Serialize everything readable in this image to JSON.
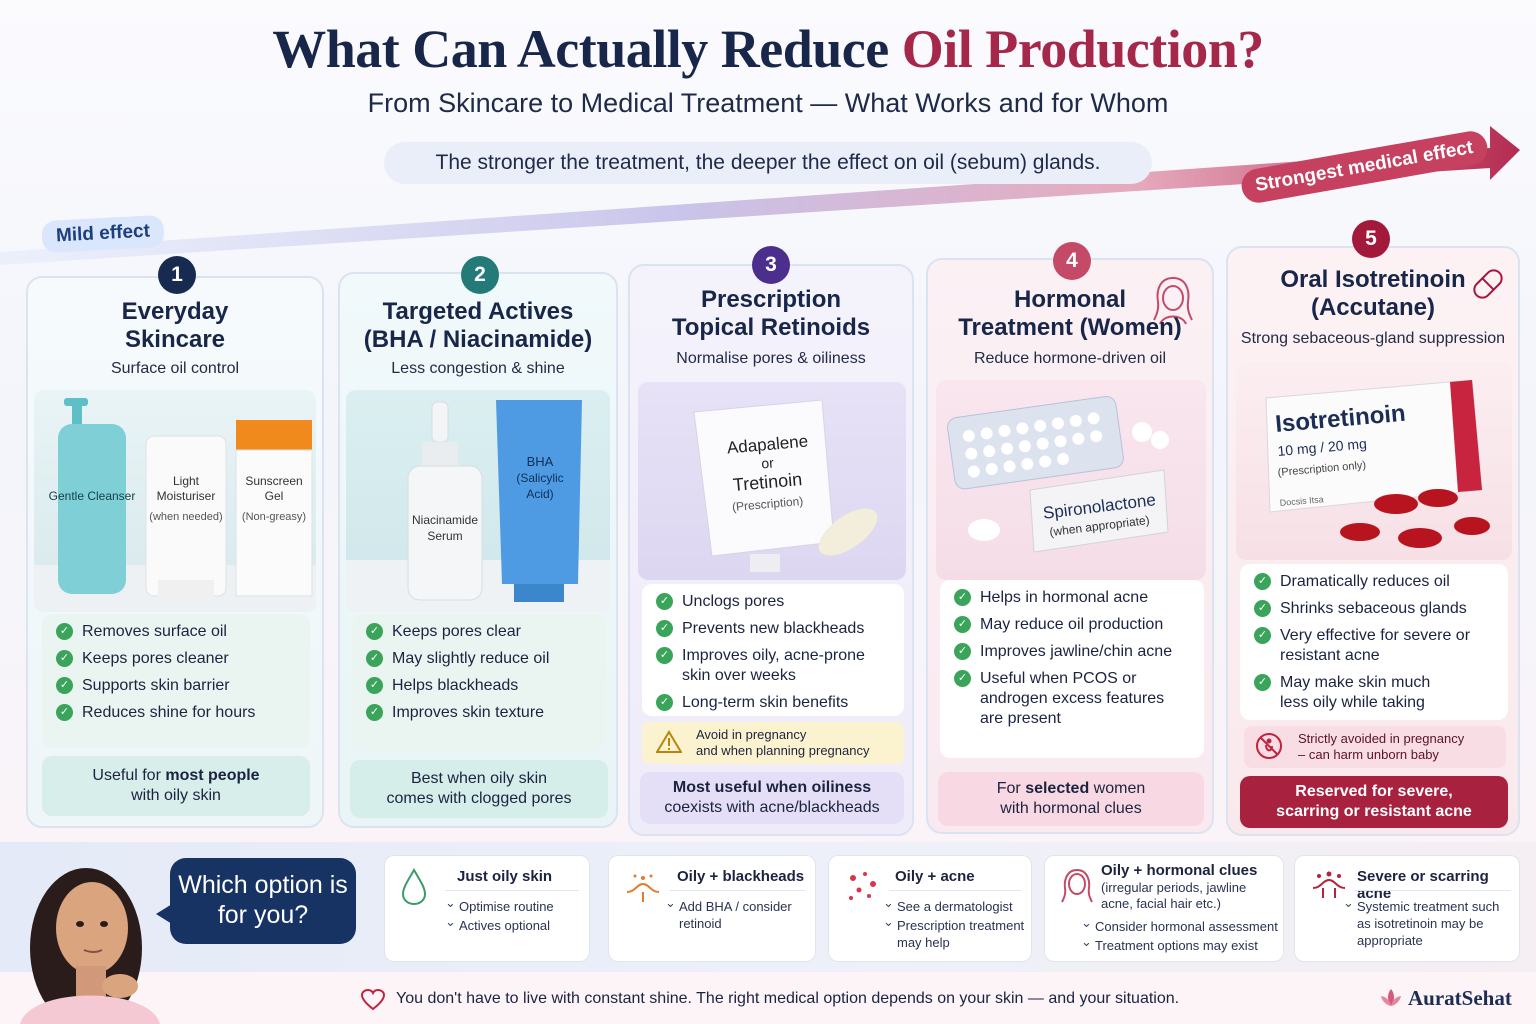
{
  "header": {
    "title_main": "What Can Actually Reduce ",
    "title_accent": "Oil Production?",
    "subtitle": "From Skincare to Medical Treatment — What Works and for Whom",
    "strip": "The stronger the treatment, the deeper the effect on oil (sebum) glands.",
    "mild_label": "Mild effect",
    "strong_label": "Strongest medical effect"
  },
  "cards": [
    {
      "number": "1",
      "title_line1": "Everyday",
      "title_line2": "Skincare",
      "subtitle": "Surface oil control",
      "products": {
        "cleanser": "Gentle Cleanser",
        "moist_1": "Light",
        "moist_2": "Moisturiser",
        "moist_3": "(when needed)",
        "sun_1": "Sunscreen",
        "sun_2": "Gel",
        "sun_3": "(Non-greasy)"
      },
      "benefits": [
        "Removes surface oil",
        "Keeps pores cleaner",
        "Supports skin barrier",
        "Reduces shine for hours"
      ],
      "footer_pre": "Useful for ",
      "footer_bold": "most people",
      "footer_post": "with oily skin"
    },
    {
      "number": "2",
      "title_line1": "Targeted Actives",
      "title_line2": "(BHA / Niacinamide)",
      "subtitle": "Less congestion & shine",
      "products": {
        "serum_1": "Niacinamide",
        "serum_2": "Serum",
        "bha_1": "BHA",
        "bha_2": "(Salicylic",
        "bha_3": "Acid)"
      },
      "benefits": [
        "Keeps pores clear",
        "May slightly reduce oil",
        "Helps blackheads",
        "Improves skin texture"
      ],
      "footer_line1": "Best when oily skin",
      "footer_line2": "comes with clogged pores"
    },
    {
      "number": "3",
      "title_line1": "Prescription",
      "title_line2": "Topical Retinoids",
      "subtitle": "Normalise pores & oiliness",
      "products": {
        "tube_1": "Adapalene",
        "tube_2": "or",
        "tube_3": "Tretinoin",
        "tube_4": "(Prescription)"
      },
      "benefits": [
        "Unclogs pores",
        "Prevents new blackheads",
        "Improves oily, acne-prone skin over weeks",
        "Long-term skin benefits"
      ],
      "warning_line1": "Avoid in pregnancy",
      "warning_line2": "and when planning pregnancy",
      "footer_bold": "Most useful when oiliness",
      "footer_line2": "coexists with acne/blackheads"
    },
    {
      "number": "4",
      "title_line1": "Hormonal",
      "title_line2": "Treatment (Women)",
      "subtitle": "Reduce hormone-driven oil",
      "products": {
        "box_1": "Spironolactone",
        "box_2": "(when appropriate)"
      },
      "benefits": [
        "Helps in hormonal acne",
        "May reduce oil production",
        "Improves jawline/chin acne",
        "Useful when PCOS or androgen excess features are present"
      ],
      "footer_pre": "For ",
      "footer_bold": "selected",
      "footer_post": " women",
      "footer_line2": "with hormonal clues"
    },
    {
      "number": "5",
      "title_line1": "Oral Isotretinoin",
      "title_line2": "(Accutane)",
      "subtitle": "Strong sebaceous-gland suppression",
      "products": {
        "box_1": "Isotretinoin",
        "box_2": "10 mg / 20 mg",
        "box_3": "(Prescription only)",
        "box_4": "Docsis Itsa"
      },
      "benefits": [
        "Dramatically reduces oil",
        "Shrinks sebaceous glands",
        "Very effective for severe or resistant acne",
        "May make skin much less oily while taking"
      ],
      "warning_line1": "Strictly avoided in pregnancy",
      "warning_line2": "– can harm unborn baby",
      "footer_line1": "Reserved for severe,",
      "footer_line2": "scarring or resistant acne"
    }
  ],
  "bottom": {
    "question": "Which option is for you?",
    "scenarios": [
      {
        "title": "Just oily skin",
        "items": [
          "Optimise routine",
          "Actives optional"
        ]
      },
      {
        "title": "Oily + blackheads",
        "items": [
          "Add BHA / consider retinoid"
        ]
      },
      {
        "title": "Oily + acne",
        "items": [
          "See a dermatologist",
          "Prescription treatment may help"
        ]
      },
      {
        "title": "Oily + hormonal clues",
        "paren": "(irregular periods, jawline acne, facial hair etc.)",
        "items": [
          "Consider hormonal assessment",
          "Treatment options may exist"
        ]
      },
      {
        "title": "Severe or scarring acne",
        "items": [
          "Systemic treatment such as isotretinoin may be appropriate"
        ]
      }
    ],
    "tagline": "You don't have to live with constant shine. The right medical option depends on your skin — and your situation.",
    "brand": "AuratSehat"
  },
  "colors": {
    "navy": "#182649",
    "accent": "#a5284a",
    "teal": "#2d7f7a",
    "purple": "#5a3d98",
    "rose": "#c1425f",
    "crimson": "#9e1b3a",
    "check": "#3aa45a"
  }
}
